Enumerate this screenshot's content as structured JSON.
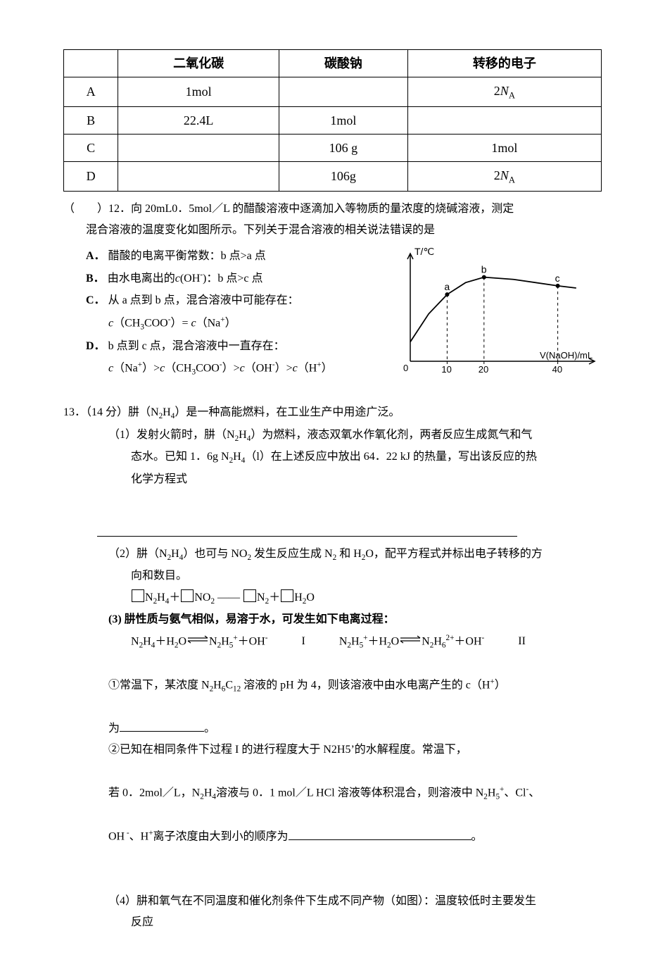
{
  "table": {
    "headers": [
      "",
      "二氧化碳",
      "碳酸钠",
      "转移的电子"
    ],
    "rows": [
      [
        "A",
        "1mol",
        "",
        "2N_A"
      ],
      [
        "B",
        "22.4L",
        "1mol",
        ""
      ],
      [
        "C",
        "",
        "106 g",
        "1mol"
      ],
      [
        "D",
        "",
        "106g",
        "2N_A"
      ]
    ],
    "border_color": "#000000",
    "font_size": 18
  },
  "q12": {
    "prefix": "（　　）12．",
    "stem_a": "向 20mL0．5mol／L 的醋酸溶液中逐滴加入等物质的量浓度的烧碱溶液，测定",
    "stem_b": "混合溶液的温度变化如图所示。下列关于混合溶液的相关说法错误的是",
    "options": {
      "A": "醋酸的电离平衡常数：b 点>a 点",
      "B": "由水电离出的c(OH⁻)：b 点>c 点",
      "C1": "从 a 点到 b 点，混合溶液中可能存在：",
      "C2": "c（CH₃COO⁻）= c（Na⁺）",
      "D1": "b 点到 c 点，混合溶液中一直存在：",
      "D2": "c（Na⁺）>c（CH₃COO⁻）>c（OH⁻）>c（H⁺）"
    },
    "chart": {
      "type": "line",
      "y_label": "T/℃",
      "x_label": "V(NaOH)/mL",
      "x_ticks": [
        10,
        20,
        40
      ],
      "x_range": [
        0,
        50
      ],
      "points": {
        "a": {
          "x": 10,
          "y": 0.62,
          "label": "a"
        },
        "b": {
          "x": 20,
          "y": 0.78,
          "label": "b"
        },
        "c": {
          "x": 40,
          "y": 0.7,
          "label": "c"
        }
      },
      "curve": [
        {
          "x": 0,
          "y": 0.18
        },
        {
          "x": 5,
          "y": 0.44
        },
        {
          "x": 10,
          "y": 0.62
        },
        {
          "x": 15,
          "y": 0.73
        },
        {
          "x": 20,
          "y": 0.78
        },
        {
          "x": 28,
          "y": 0.76
        },
        {
          "x": 40,
          "y": 0.7
        },
        {
          "x": 45,
          "y": 0.68
        }
      ],
      "axis_color": "#000000",
      "curve_color": "#000000",
      "curve_width": 1.8,
      "dash": "4,4",
      "label_fontsize": 14,
      "tick_fontsize": 13
    }
  },
  "q13": {
    "num": "13．（14 分）",
    "stem": "肼（N₂H₄）是一种高能燃料，在工业生产中用途广泛。",
    "p1a": "（1）发射火箭时，肼（N₂H₄）为燃料，液态双氧水作氧化剂，两者反应生成氮气和气",
    "p1b": "态水。已知 1．6g N₂H₄（l）在上述反应中放出 64．22 kJ 的热量，写出该反应的热",
    "p1c": "化学方程式",
    "p2a": "（2）肼（N₂H₄）也可与 NO₂ 发生反应生成 N₂ 和 H₂O，配平方程式并标出电子转移的方",
    "p2b": "向和数目。",
    "p2eq": {
      "r1": "N₂H₄",
      "plus1": "＋",
      "r2": "NO₂",
      "arrow": "——",
      "p1": "N₂",
      "plus2": "＋",
      "p2": "H₂O"
    },
    "p3_label": "(3)",
    "p3a": "肼性质与氨气相似，易溶于水，可发生如下电离过程：",
    "p3eqI_l": "N₂H₄＋H₂O",
    "p3eqI_r": "N₂H₅⁺＋OH⁻",
    "p3eqI_tag": "I",
    "p3eqII_l": "N₂H₅⁺＋H₂O",
    "p3eqII_r": "N₂H₆²⁺＋OH⁻",
    "p3eqII_tag": "II",
    "p3_q1a": "①常温下，某浓度 N₂H₆C₁₂ 溶液的 pH 为 4，则该溶液中由水电离产生的 c（H⁺）",
    "p3_q1b": "为",
    "p3_q1c": "。",
    "p3_q2a": "②已知在相同条件下过程 I 的进行程度大于 N2H5’的水解程度。常温下，",
    "p3_q2b": "若 0．2mol／L，N₂H₄溶液与 0．1 mol／L HCl 溶液等体积混合，则溶液中 N₂H₅⁺、Cl⁻、",
    "p3_q2c": "OH⁻、H⁺离子浓度由大到小的顺序为",
    "p3_q2d": "。",
    "p4a": "（4）肼和氧气在不同温度和催化剂条件下生成不同产物（如图）：温度较低时主要发生",
    "p4b": "反应"
  }
}
